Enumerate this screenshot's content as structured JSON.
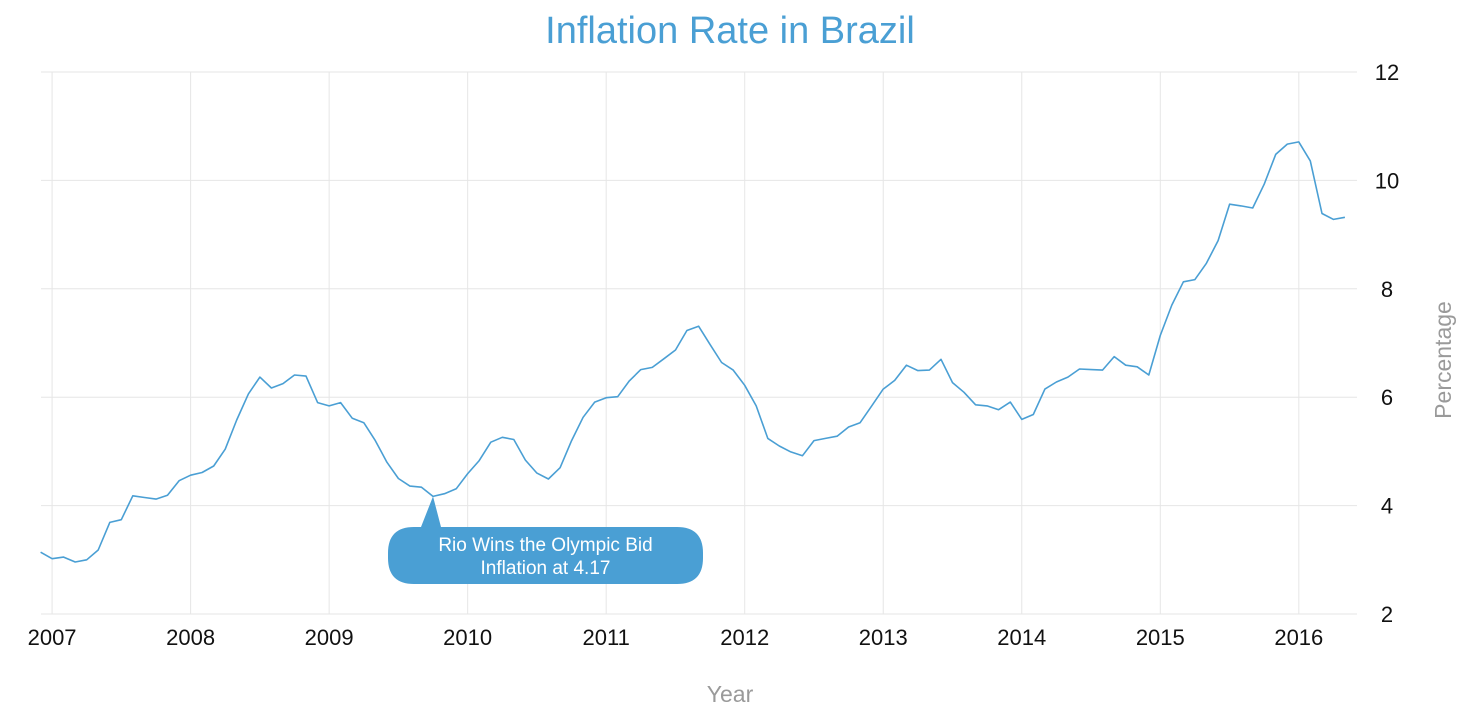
{
  "colors": {
    "accent": "#4a9fd4",
    "grid": "#e6e6e6",
    "axis_text": "#111111",
    "axis_label": "#9a9a9a",
    "annotation_bg": "#4a9fd4",
    "annotation_text": "#ffffff"
  },
  "chart_data": {
    "type": "line",
    "title": "Inflation Rate in Brazil",
    "xlabel": "Year",
    "ylabel": "Percentage",
    "y_axis_side": "right",
    "xlim": [
      2006.92,
      2016.42
    ],
    "ylim": [
      2,
      12
    ],
    "x_ticks": [
      2007,
      2008,
      2009,
      2010,
      2011,
      2012,
      2013,
      2014,
      2015,
      2016
    ],
    "y_ticks": [
      2,
      4,
      6,
      8,
      10,
      12
    ],
    "grid": true,
    "series": [
      {
        "name": "Inflation Rate",
        "x": [
          2006.917,
          2007.0,
          2007.083,
          2007.167,
          2007.25,
          2007.333,
          2007.417,
          2007.5,
          2007.583,
          2007.667,
          2007.75,
          2007.833,
          2007.917,
          2008.0,
          2008.083,
          2008.167,
          2008.25,
          2008.333,
          2008.417,
          2008.5,
          2008.583,
          2008.667,
          2008.75,
          2008.833,
          2008.917,
          2009.0,
          2009.083,
          2009.167,
          2009.25,
          2009.333,
          2009.417,
          2009.5,
          2009.583,
          2009.667,
          2009.75,
          2009.833,
          2009.917,
          2010.0,
          2010.083,
          2010.167,
          2010.25,
          2010.333,
          2010.417,
          2010.5,
          2010.583,
          2010.667,
          2010.75,
          2010.833,
          2010.917,
          2011.0,
          2011.083,
          2011.167,
          2011.25,
          2011.333,
          2011.417,
          2011.5,
          2011.583,
          2011.667,
          2011.75,
          2011.833,
          2011.917,
          2012.0,
          2012.083,
          2012.167,
          2012.25,
          2012.333,
          2012.417,
          2012.5,
          2012.583,
          2012.667,
          2012.75,
          2012.833,
          2012.917,
          2013.0,
          2013.083,
          2013.167,
          2013.25,
          2013.333,
          2013.417,
          2013.5,
          2013.583,
          2013.667,
          2013.75,
          2013.833,
          2013.917,
          2014.0,
          2014.083,
          2014.167,
          2014.25,
          2014.333,
          2014.417,
          2014.5,
          2014.583,
          2014.667,
          2014.75,
          2014.833,
          2014.917,
          2015.0,
          2015.083,
          2015.167,
          2015.25,
          2015.333,
          2015.417,
          2015.5,
          2015.583,
          2015.667,
          2015.75,
          2015.833,
          2015.917,
          2016.0,
          2016.083,
          2016.167,
          2016.25,
          2016.333
        ],
        "values": [
          3.14,
          3.02,
          3.05,
          2.96,
          3.0,
          3.18,
          3.69,
          3.74,
          4.18,
          4.15,
          4.12,
          4.19,
          4.46,
          4.56,
          4.61,
          4.73,
          5.04,
          5.58,
          6.06,
          6.37,
          6.17,
          6.25,
          6.41,
          6.39,
          5.9,
          5.84,
          5.9,
          5.61,
          5.53,
          5.2,
          4.8,
          4.5,
          4.36,
          4.34,
          4.17,
          4.22,
          4.31,
          4.59,
          4.83,
          5.17,
          5.26,
          5.22,
          4.84,
          4.6,
          4.49,
          4.7,
          5.2,
          5.63,
          5.91,
          5.99,
          6.01,
          6.3,
          6.51,
          6.55,
          6.71,
          6.87,
          7.23,
          7.31,
          6.97,
          6.64,
          6.5,
          6.22,
          5.84,
          5.24,
          5.1,
          4.99,
          4.92,
          5.2,
          5.24,
          5.28,
          5.45,
          5.53,
          5.84,
          6.15,
          6.31,
          6.59,
          6.49,
          6.5,
          6.7,
          6.27,
          6.09,
          5.86,
          5.84,
          5.77,
          5.91,
          5.59,
          5.68,
          6.15,
          6.28,
          6.37,
          6.52,
          6.51,
          6.5,
          6.75,
          6.59,
          6.56,
          6.41,
          7.14,
          7.7,
          8.13,
          8.17,
          8.47,
          8.89,
          9.56,
          9.53,
          9.49,
          9.93,
          10.48,
          10.67,
          10.71,
          10.36,
          9.39,
          9.28,
          9.32
        ]
      }
    ],
    "annotations": [
      {
        "text_line1": "Rio Wins the Olympic Bid",
        "text_line2": "Inflation at 4.17",
        "x": 2009.75,
        "y": 4.17
      }
    ]
  }
}
